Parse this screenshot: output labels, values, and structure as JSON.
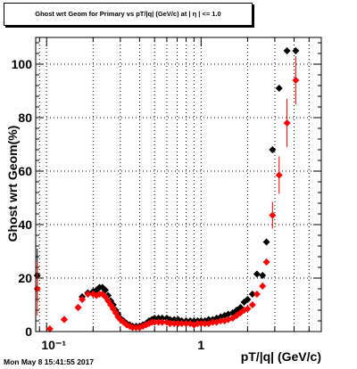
{
  "footer": "Mon May  8 15:41:55 2017",
  "colors": {
    "series_1": "#000000",
    "series_2": "#ff0000"
  },
  "chart_data": {
    "type": "scatter",
    "title": "Ghost wrt Geom for Primary vs pT/|q| (GeV/c) at | η | <= 1.0",
    "xlabel": "pT/|q| (GeV/c)",
    "ylabel": "Ghost wrt Geom(%)",
    "xscale": "log",
    "xlim": [
      0.085,
      6.0
    ],
    "ylim": [
      0,
      110
    ],
    "grid": true,
    "x_tick_labels": [
      {
        "label": "10⁻¹",
        "value": 0.1
      },
      {
        "label": "1",
        "value": 1
      }
    ],
    "y_ticks": [
      0,
      20,
      40,
      60,
      80,
      100
    ],
    "series": [
      {
        "color": "#000000",
        "points": [
          {
            "x": 0.087,
            "y": 21,
            "ey": 10
          },
          {
            "x": 0.13,
            "y": 4.5
          },
          {
            "x": 0.16,
            "y": 9
          },
          {
            "x": 0.17,
            "y": 13
          },
          {
            "x": 0.185,
            "y": 14.5
          },
          {
            "x": 0.2,
            "y": 15
          },
          {
            "x": 0.21,
            "y": 15.5
          },
          {
            "x": 0.22,
            "y": 16.5
          },
          {
            "x": 0.23,
            "y": 16.5
          },
          {
            "x": 0.24,
            "y": 15.5
          },
          {
            "x": 0.25,
            "y": 13.5
          },
          {
            "x": 0.26,
            "y": 11.5
          },
          {
            "x": 0.27,
            "y": 10
          },
          {
            "x": 0.28,
            "y": 8
          },
          {
            "x": 0.29,
            "y": 6.5
          },
          {
            "x": 0.3,
            "y": 5
          },
          {
            "x": 0.315,
            "y": 4
          },
          {
            "x": 0.33,
            "y": 3
          },
          {
            "x": 0.345,
            "y": 2.5
          },
          {
            "x": 0.36,
            "y": 2
          },
          {
            "x": 0.38,
            "y": 2
          },
          {
            "x": 0.4,
            "y": 2
          },
          {
            "x": 0.42,
            "y": 2.5
          },
          {
            "x": 0.44,
            "y": 3
          },
          {
            "x": 0.46,
            "y": 4
          },
          {
            "x": 0.48,
            "y": 4.5
          },
          {
            "x": 0.5,
            "y": 5
          },
          {
            "x": 0.53,
            "y": 5
          },
          {
            "x": 0.56,
            "y": 5
          },
          {
            "x": 0.6,
            "y": 5
          },
          {
            "x": 0.63,
            "y": 4.5
          },
          {
            "x": 0.67,
            "y": 4.5
          },
          {
            "x": 0.71,
            "y": 4.5
          },
          {
            "x": 0.75,
            "y": 4
          },
          {
            "x": 0.8,
            "y": 4
          },
          {
            "x": 0.85,
            "y": 4
          },
          {
            "x": 0.9,
            "y": 4
          },
          {
            "x": 0.95,
            "y": 4
          },
          {
            "x": 1.0,
            "y": 4
          },
          {
            "x": 1.06,
            "y": 4
          },
          {
            "x": 1.12,
            "y": 4.5
          },
          {
            "x": 1.19,
            "y": 4.5
          },
          {
            "x": 1.26,
            "y": 5
          },
          {
            "x": 1.34,
            "y": 5.5
          },
          {
            "x": 1.42,
            "y": 6
          },
          {
            "x": 1.5,
            "y": 6.5
          },
          {
            "x": 1.6,
            "y": 7
          },
          {
            "x": 1.7,
            "y": 8
          },
          {
            "x": 1.8,
            "y": 9
          },
          {
            "x": 1.9,
            "y": 11
          },
          {
            "x": 2.0,
            "y": 12
          },
          {
            "x": 2.15,
            "y": 14
          },
          {
            "x": 2.3,
            "y": 21.5
          },
          {
            "x": 2.5,
            "y": 21
          },
          {
            "x": 2.65,
            "y": 33.5
          },
          {
            "x": 2.9,
            "y": 68
          },
          {
            "x": 3.2,
            "y": 91
          },
          {
            "x": 3.6,
            "y": 105
          },
          {
            "x": 4.1,
            "y": 105
          }
        ]
      },
      {
        "color": "#ff0000",
        "points": [
          {
            "x": 0.087,
            "y": 16,
            "ey": 10
          },
          {
            "x": 0.105,
            "y": 1
          },
          {
            "x": 0.13,
            "y": 4.5
          },
          {
            "x": 0.16,
            "y": 9
          },
          {
            "x": 0.17,
            "y": 12
          },
          {
            "x": 0.185,
            "y": 14
          },
          {
            "x": 0.2,
            "y": 14
          },
          {
            "x": 0.21,
            "y": 13.5
          },
          {
            "x": 0.22,
            "y": 14
          },
          {
            "x": 0.23,
            "y": 14
          },
          {
            "x": 0.24,
            "y": 13
          },
          {
            "x": 0.25,
            "y": 11.5
          },
          {
            "x": 0.26,
            "y": 10
          },
          {
            "x": 0.27,
            "y": 8.5
          },
          {
            "x": 0.28,
            "y": 7
          },
          {
            "x": 0.29,
            "y": 5.5
          },
          {
            "x": 0.3,
            "y": 4.5
          },
          {
            "x": 0.315,
            "y": 3.5
          },
          {
            "x": 0.33,
            "y": 2.5
          },
          {
            "x": 0.345,
            "y": 2
          },
          {
            "x": 0.36,
            "y": 1.5
          },
          {
            "x": 0.38,
            "y": 1.5
          },
          {
            "x": 0.4,
            "y": 1.5
          },
          {
            "x": 0.42,
            "y": 2
          },
          {
            "x": 0.44,
            "y": 2.5
          },
          {
            "x": 0.46,
            "y": 3
          },
          {
            "x": 0.48,
            "y": 3.5
          },
          {
            "x": 0.5,
            "y": 3.5
          },
          {
            "x": 0.53,
            "y": 3.5
          },
          {
            "x": 0.56,
            "y": 3.5
          },
          {
            "x": 0.6,
            "y": 3.5
          },
          {
            "x": 0.63,
            "y": 3
          },
          {
            "x": 0.67,
            "y": 3
          },
          {
            "x": 0.71,
            "y": 3
          },
          {
            "x": 0.75,
            "y": 3
          },
          {
            "x": 0.8,
            "y": 3
          },
          {
            "x": 0.85,
            "y": 3
          },
          {
            "x": 0.9,
            "y": 2.5
          },
          {
            "x": 0.95,
            "y": 3
          },
          {
            "x": 1.0,
            "y": 3
          },
          {
            "x": 1.06,
            "y": 3
          },
          {
            "x": 1.12,
            "y": 3
          },
          {
            "x": 1.19,
            "y": 3.5
          },
          {
            "x": 1.26,
            "y": 3.5
          },
          {
            "x": 1.34,
            "y": 4
          },
          {
            "x": 1.42,
            "y": 4
          },
          {
            "x": 1.5,
            "y": 4.5
          },
          {
            "x": 1.6,
            "y": 5
          },
          {
            "x": 1.7,
            "y": 6
          },
          {
            "x": 1.8,
            "y": 7
          },
          {
            "x": 1.9,
            "y": 8
          },
          {
            "x": 2.0,
            "y": 8.5
          },
          {
            "x": 2.15,
            "y": 10
          },
          {
            "x": 2.3,
            "y": 14
          },
          {
            "x": 2.5,
            "y": 17
          },
          {
            "x": 2.65,
            "y": 26
          },
          {
            "x": 2.9,
            "y": 43.5,
            "ey": 5
          },
          {
            "x": 3.2,
            "y": 58.5,
            "ey": 7
          },
          {
            "x": 3.6,
            "y": 78,
            "ey": 9
          },
          {
            "x": 4.1,
            "y": 94,
            "ey": 9
          }
        ]
      }
    ]
  }
}
